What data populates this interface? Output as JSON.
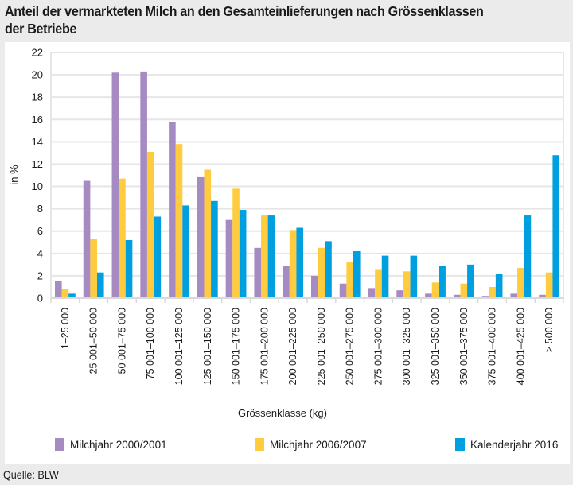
{
  "title_lines": [
    "Anteil der vermarkteten Milch an den Gesamteinlieferungen nach Grössenklassen",
    "der Betriebe"
  ],
  "source": "Quelle: BLW",
  "colors": {
    "page_background": "#EBEBEB",
    "panel_background": "#FFFFFF",
    "gridline": "#E6E6E6",
    "series": [
      "#A68BC2",
      "#FFCC40",
      "#009FE0"
    ]
  },
  "chart_data": {
    "type": "bar",
    "title": "Anteil der vermarkteten Milch an den Gesamteinlieferungen nach Grössenklassen der Betriebe",
    "xlabel": "Grössenklasse (kg)",
    "ylabel": "in %",
    "ylim": [
      0,
      22
    ],
    "yticks": [
      0,
      2,
      4,
      6,
      8,
      10,
      12,
      14,
      16,
      18,
      20,
      22
    ],
    "grid": true,
    "legend_position": "bottom",
    "categories": [
      "1–25 000",
      "25 001–50 000",
      "50 001–75 000",
      "75 001–100 000",
      "100 001–125 000",
      "125 001–150 000",
      "150 001–175 000",
      "175 001–200 000",
      "200 001–225 000",
      "225 001–250 000",
      "250 001–275 000",
      "275 001–300 000",
      "300 001–325 000",
      "325 001–350 000",
      "350 001–375 000",
      "375 001–400 000",
      "400 001–425 000",
      "> 500 000"
    ],
    "series": [
      {
        "name": "Milchjahr 2000/2001",
        "color": "#A68BC2",
        "values": [
          1.5,
          10.5,
          20.2,
          20.3,
          15.8,
          10.9,
          7.0,
          4.5,
          2.9,
          2.0,
          1.3,
          0.9,
          0.7,
          0.4,
          0.3,
          0.2,
          0.4,
          0.3
        ]
      },
      {
        "name": "Milchjahr 2006/2007",
        "color": "#FFCC40",
        "values": [
          0.8,
          5.3,
          10.7,
          13.1,
          13.8,
          11.5,
          9.8,
          7.4,
          6.1,
          4.5,
          3.2,
          2.6,
          2.4,
          1.4,
          1.3,
          1.0,
          2.7,
          2.3
        ]
      },
      {
        "name": "Kalenderjahr 2016",
        "color": "#009FE0",
        "values": [
          0.4,
          2.3,
          5.2,
          7.3,
          8.3,
          8.7,
          7.9,
          7.4,
          6.3,
          5.1,
          4.2,
          3.8,
          3.8,
          2.9,
          3.0,
          2.2,
          7.4,
          12.8
        ]
      }
    ]
  }
}
